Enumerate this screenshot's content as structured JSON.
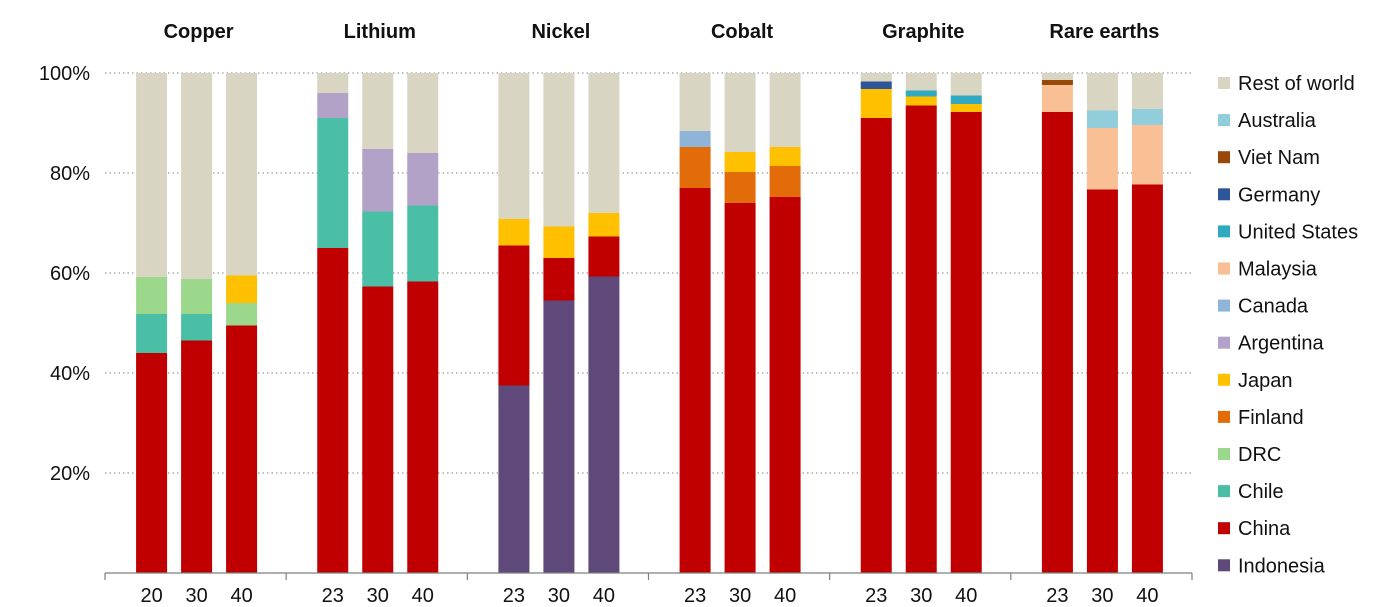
{
  "chart_data": {
    "type": "bar",
    "stacked": true,
    "y_tick_labels": [
      "100%",
      "80%",
      "60%",
      "40%",
      "20%"
    ],
    "y_ticks": [
      100,
      80,
      60,
      40,
      20
    ],
    "ylim": [
      0,
      100
    ],
    "gridlines": "dotted",
    "legend_position": "right",
    "series": [
      {
        "name": "Rest of world",
        "color": "#d9d5c3"
      },
      {
        "name": "Australia",
        "color": "#92cddc"
      },
      {
        "name": "Viet Nam",
        "color": "#984807"
      },
      {
        "name": "Germany",
        "color": "#2e5597"
      },
      {
        "name": "United States",
        "color": "#31a9c0"
      },
      {
        "name": "Malaysia",
        "color": "#f9bf95"
      },
      {
        "name": "Canada",
        "color": "#8eb4d7"
      },
      {
        "name": "Argentina",
        "color": "#b3a2c7"
      },
      {
        "name": "Japan",
        "color": "#ffc000"
      },
      {
        "name": "Finland",
        "color": "#e36c0a"
      },
      {
        "name": "DRC",
        "color": "#9bd88c"
      },
      {
        "name": "Chile",
        "color": "#4bbfa5"
      },
      {
        "name": "China",
        "color": "#c00000"
      },
      {
        "name": "Indonesia",
        "color": "#5f497a"
      }
    ],
    "groups": [
      {
        "title": "Copper",
        "bars": [
          {
            "label": "20",
            "stack": [
              {
                "s": "China",
                "v": 44
              },
              {
                "s": "Chile",
                "v": 7.8
              },
              {
                "s": "DRC",
                "v": 7.4
              },
              {
                "s": "Rest of world",
                "v": 40.8
              }
            ]
          },
          {
            "label": "30",
            "stack": [
              {
                "s": "China",
                "v": 46.5
              },
              {
                "s": "Chile",
                "v": 5.3
              },
              {
                "s": "DRC",
                "v": 7
              },
              {
                "s": "Rest of world",
                "v": 41.2
              }
            ]
          },
          {
            "label": "40",
            "stack": [
              {
                "s": "China",
                "v": 49.5
              },
              {
                "s": "DRC",
                "v": 4.5
              },
              {
                "s": "Japan",
                "v": 5.5
              },
              {
                "s": "Rest of world",
                "v": 40.5
              }
            ]
          }
        ]
      },
      {
        "title": "Lithium",
        "bars": [
          {
            "label": "23",
            "stack": [
              {
                "s": "China",
                "v": 65
              },
              {
                "s": "Chile",
                "v": 26
              },
              {
                "s": "Argentina",
                "v": 5
              },
              {
                "s": "Rest of world",
                "v": 4
              }
            ]
          },
          {
            "label": "30",
            "stack": [
              {
                "s": "China",
                "v": 57.3
              },
              {
                "s": "Chile",
                "v": 15
              },
              {
                "s": "Argentina",
                "v": 12.5
              },
              {
                "s": "Rest of world",
                "v": 15.2
              }
            ]
          },
          {
            "label": "40",
            "stack": [
              {
                "s": "China",
                "v": 58.3
              },
              {
                "s": "Chile",
                "v": 15.2
              },
              {
                "s": "Argentina",
                "v": 10.5
              },
              {
                "s": "Rest of world",
                "v": 16
              }
            ]
          }
        ]
      },
      {
        "title": "Nickel",
        "bars": [
          {
            "label": "23",
            "stack": [
              {
                "s": "Indonesia",
                "v": 37.5
              },
              {
                "s": "China",
                "v": 28
              },
              {
                "s": "Japan",
                "v": 5.3
              },
              {
                "s": "Rest of world",
                "v": 29.2
              }
            ]
          },
          {
            "label": "30",
            "stack": [
              {
                "s": "Indonesia",
                "v": 54.5
              },
              {
                "s": "China",
                "v": 8.5
              },
              {
                "s": "Japan",
                "v": 6.3
              },
              {
                "s": "Rest of world",
                "v": 30.7
              }
            ]
          },
          {
            "label": "40",
            "stack": [
              {
                "s": "Indonesia",
                "v": 59.3
              },
              {
                "s": "China",
                "v": 8
              },
              {
                "s": "Japan",
                "v": 4.7
              },
              {
                "s": "Rest of world",
                "v": 28
              }
            ]
          }
        ]
      },
      {
        "title": "Cobalt",
        "bars": [
          {
            "label": "23",
            "stack": [
              {
                "s": "China",
                "v": 77
              },
              {
                "s": "Finland",
                "v": 8.2
              },
              {
                "s": "Canada",
                "v": 3.2
              },
              {
                "s": "Rest of world",
                "v": 11.6
              }
            ]
          },
          {
            "label": "30",
            "stack": [
              {
                "s": "China",
                "v": 74
              },
              {
                "s": "Finland",
                "v": 6.2
              },
              {
                "s": "Japan",
                "v": 4
              },
              {
                "s": "Rest of world",
                "v": 15.8
              }
            ]
          },
          {
            "label": "40",
            "stack": [
              {
                "s": "China",
                "v": 75.2
              },
              {
                "s": "Finland",
                "v": 6.2
              },
              {
                "s": "Japan",
                "v": 3.8
              },
              {
                "s": "Rest of world",
                "v": 14.8
              }
            ]
          }
        ]
      },
      {
        "title": "Graphite",
        "bars": [
          {
            "label": "23",
            "stack": [
              {
                "s": "China",
                "v": 91
              },
              {
                "s": "Japan",
                "v": 5.8
              },
              {
                "s": "Germany",
                "v": 1.5
              },
              {
                "s": "Rest of world",
                "v": 1.7
              }
            ]
          },
          {
            "label": "30",
            "stack": [
              {
                "s": "China",
                "v": 93.5
              },
              {
                "s": "Japan",
                "v": 1.8
              },
              {
                "s": "United States",
                "v": 1.2
              },
              {
                "s": "Rest of world",
                "v": 3.5
              }
            ]
          },
          {
            "label": "40",
            "stack": [
              {
                "s": "China",
                "v": 92.2
              },
              {
                "s": "Japan",
                "v": 1.6
              },
              {
                "s": "United States",
                "v": 1.7
              },
              {
                "s": "Rest of world",
                "v": 4.5
              }
            ]
          }
        ]
      },
      {
        "title": "Rare earths",
        "bars": [
          {
            "label": "23",
            "stack": [
              {
                "s": "China",
                "v": 92.2
              },
              {
                "s": "Malaysia",
                "v": 5.4
              },
              {
                "s": "Viet Nam",
                "v": 1
              },
              {
                "s": "Rest of world",
                "v": 1.4
              }
            ]
          },
          {
            "label": "30",
            "stack": [
              {
                "s": "China",
                "v": 76.7
              },
              {
                "s": "Malaysia",
                "v": 12.3
              },
              {
                "s": "Australia",
                "v": 3.5
              },
              {
                "s": "Rest of world",
                "v": 7.5
              }
            ]
          },
          {
            "label": "40",
            "stack": [
              {
                "s": "China",
                "v": 77.7
              },
              {
                "s": "Malaysia",
                "v": 11.9
              },
              {
                "s": "Australia",
                "v": 3.2
              },
              {
                "s": "Rest of world",
                "v": 7.2
              }
            ]
          }
        ]
      }
    ]
  }
}
